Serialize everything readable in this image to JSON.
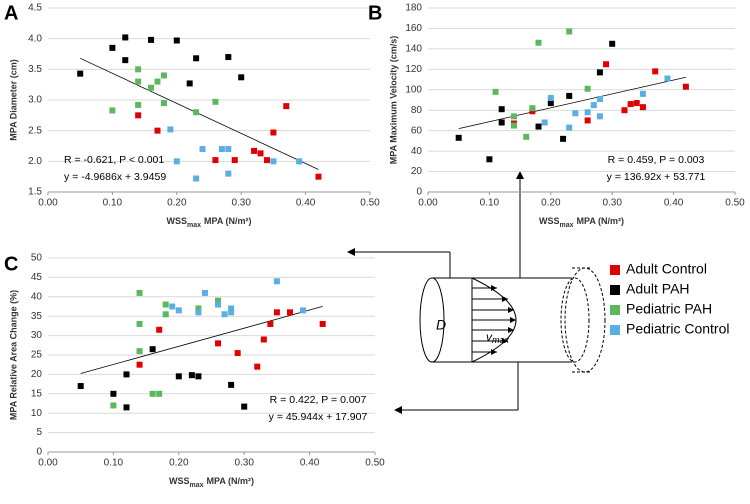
{
  "chart_data": [
    {
      "type": "scatter",
      "panel": "A",
      "ylabel": "MPA Diameter (cm)",
      "xlabel": "WSS",
      "xlabel_sub": "max",
      "xlabel_rest": "MPA (N/m²)",
      "annotations": [
        "R = -0.621, P < 0.001",
        "y = -4.9686x + 3.9459"
      ],
      "xlim": [
        0,
        0.5
      ],
      "ylim": [
        1.5,
        4.5
      ],
      "xticks": [
        {
          "value": 0,
          "label": "0.00"
        },
        {
          "value": 0.1,
          "label": "0.10"
        },
        {
          "value": 0.2,
          "label": "0.20"
        },
        {
          "value": 0.3,
          "label": "0.30"
        },
        {
          "value": 0.4,
          "label": "0.40"
        },
        {
          "value": 0.5,
          "label": "0.50"
        }
      ],
      "yticks": [
        1.5,
        {
          "value": 2,
          "label": "2.0"
        },
        2.5,
        {
          "value": 3,
          "label": "3.0"
        },
        3.5,
        {
          "value": 4,
          "label": "4.0"
        },
        4.5
      ],
      "series": [
        {
          "name": "Adult Control",
          "color": "#e00000",
          "x": [
            0.14,
            0.17,
            0.26,
            0.29,
            0.32,
            0.33,
            0.34,
            0.35,
            0.37,
            0.42
          ],
          "values": [
            2.75,
            2.5,
            2.02,
            2.02,
            2.17,
            2.13,
            2.02,
            2.47,
            2.9,
            1.75
          ]
        },
        {
          "name": "Adult PAH",
          "color": "#000000",
          "x": [
            0.05,
            0.1,
            0.12,
            0.12,
            0.16,
            0.2,
            0.22,
            0.23,
            0.28,
            0.3
          ],
          "values": [
            3.43,
            3.85,
            4.02,
            3.65,
            3.98,
            3.97,
            3.27,
            3.68,
            3.7,
            3.37
          ]
        },
        {
          "name": "Pediatric PAH",
          "color": "#5cb85c",
          "x": [
            0.1,
            0.14,
            0.14,
            0.14,
            0.16,
            0.17,
            0.18,
            0.18,
            0.23,
            0.26
          ],
          "values": [
            2.83,
            3.5,
            3.3,
            2.92,
            3.2,
            3.3,
            3.4,
            2.95,
            2.8,
            2.97
          ]
        },
        {
          "name": "Pediatric Control",
          "color": "#5aaee0",
          "x": [
            0.19,
            0.2,
            0.23,
            0.24,
            0.27,
            0.28,
            0.28,
            0.35,
            0.39
          ],
          "values": [
            2.52,
            2.0,
            1.72,
            2.2,
            2.2,
            2.2,
            1.8,
            2.0,
            2.0
          ]
        }
      ]
    },
    {
      "type": "scatter",
      "panel": "B",
      "ylabel": "MPA Maximum Velocity (cm/s)",
      "xlabel": "WSS",
      "xlabel_sub": "max",
      "xlabel_rest": "MPA (N/m²)",
      "annotations": [
        "R = 0.459, P = 0.003",
        "y = 136.92x + 53.771"
      ],
      "xlim": [
        0,
        0.5
      ],
      "ylim": [
        0,
        180
      ],
      "xticks": [
        {
          "value": 0,
          "label": "0.00"
        },
        {
          "value": 0.1,
          "label": "0.10"
        },
        {
          "value": 0.2,
          "label": "0.20"
        },
        {
          "value": 0.3,
          "label": "0.30"
        },
        {
          "value": 0.4,
          "label": "0.40"
        },
        {
          "value": 0.5,
          "label": "0.50"
        }
      ],
      "yticks": [
        0,
        20,
        40,
        60,
        80,
        100,
        120,
        140,
        160,
        180
      ],
      "series": [
        {
          "color": "#e00000",
          "x": [
            0.14,
            0.17,
            0.26,
            0.29,
            0.32,
            0.33,
            0.34,
            0.35,
            0.37,
            0.42
          ],
          "values": [
            67,
            79,
            70,
            125,
            80,
            86,
            87,
            83,
            118,
            103
          ]
        },
        {
          "color": "#000000",
          "x": [
            0.05,
            0.1,
            0.12,
            0.12,
            0.18,
            0.2,
            0.22,
            0.23,
            0.28,
            0.3
          ],
          "values": [
            53,
            32,
            68,
            81,
            64,
            87,
            52,
            94,
            117,
            145
          ]
        },
        {
          "color": "#5cb85c",
          "x": [
            0.11,
            0.14,
            0.14,
            0.16,
            0.17,
            0.18,
            0.23,
            0.26
          ],
          "values": [
            98,
            74,
            65,
            54,
            82,
            146,
            157,
            101
          ]
        },
        {
          "color": "#5aaee0",
          "x": [
            0.19,
            0.2,
            0.23,
            0.24,
            0.26,
            0.27,
            0.28,
            0.28,
            0.35,
            0.39
          ],
          "values": [
            68,
            92,
            63,
            77,
            78,
            85,
            91,
            74,
            96,
            111
          ]
        }
      ]
    },
    {
      "type": "scatter",
      "panel": "C",
      "ylabel": "MPA Relative Area Change (%)",
      "xlabel": "WSS",
      "xlabel_sub": "max",
      "xlabel_rest": "MPA (N/m²)",
      "annotations": [
        "R = 0.422, P = 0.007",
        "y = 45.944x + 17.907"
      ],
      "xlim": [
        0,
        0.5
      ],
      "ylim": [
        0,
        50
      ],
      "xticks": [
        {
          "value": 0,
          "label": "0.00"
        },
        {
          "value": 0.1,
          "label": "0.10"
        },
        {
          "value": 0.2,
          "label": "0.20"
        },
        {
          "value": 0.3,
          "label": "0.30"
        },
        {
          "value": 0.4,
          "label": "0.40"
        },
        {
          "value": 0.5,
          "label": "0.50"
        }
      ],
      "yticks": [
        0,
        5,
        10,
        15,
        20,
        25,
        30,
        35,
        40,
        45,
        50
      ],
      "series": [
        {
          "color": "#e00000",
          "x": [
            0.14,
            0.17,
            0.26,
            0.29,
            0.32,
            0.33,
            0.34,
            0.35,
            0.37,
            0.42
          ],
          "values": [
            22.5,
            31.5,
            28,
            25.5,
            22,
            29,
            33,
            36,
            36,
            33
          ]
        },
        {
          "color": "#000000",
          "x": [
            0.05,
            0.1,
            0.12,
            0.12,
            0.16,
            0.2,
            0.22,
            0.23,
            0.28,
            0.3
          ],
          "values": [
            17,
            15,
            20,
            11.5,
            26.5,
            19.5,
            19.8,
            19.5,
            17.3,
            11.7
          ]
        },
        {
          "color": "#5cb85c",
          "x": [
            0.1,
            0.14,
            0.14,
            0.14,
            0.16,
            0.17,
            0.18,
            0.18,
            0.23,
            0.26
          ],
          "values": [
            12,
            41,
            33,
            26,
            15,
            15,
            38,
            35.5,
            37,
            39
          ]
        },
        {
          "color": "#5aaee0",
          "x": [
            0.19,
            0.2,
            0.23,
            0.24,
            0.26,
            0.27,
            0.28,
            0.28,
            0.35,
            0.39
          ],
          "values": [
            37.5,
            36.5,
            36,
            41,
            38,
            35.5,
            37,
            36,
            44,
            36.5
          ]
        }
      ]
    }
  ],
  "diagram": {
    "diameter_label": "D",
    "velocity_label": "v",
    "velocity_subscript": "max"
  }
}
